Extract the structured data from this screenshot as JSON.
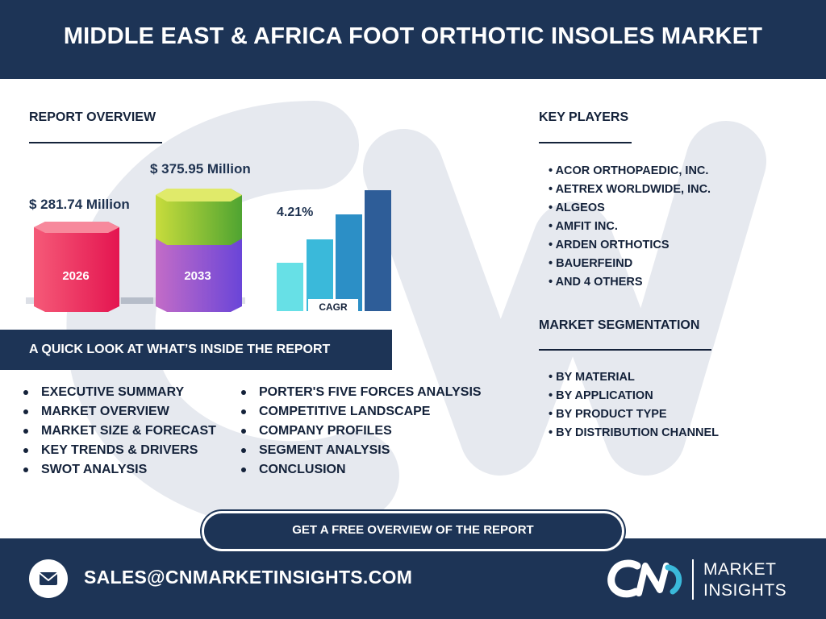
{
  "header": {
    "title": "MIDDLE EAST & AFRICA FOOT ORTHOTIC INSOLES MARKET"
  },
  "overview": {
    "title": "REPORT OVERVIEW",
    "value_2026": "$ 281.74 Million",
    "value_2033": "$ 375.95 Million",
    "year_2026": "2026",
    "year_2033": "2033",
    "cagr_value": "4.21%",
    "cagr_label": "CAGR"
  },
  "chart_data": {
    "type": "bar",
    "categories": [
      "2026",
      "2033"
    ],
    "values": [
      281.74,
      375.95
    ],
    "ylabel": "Million",
    "cagr_percent": 4.21
  },
  "key_players": {
    "title": "KEY PLAYERS",
    "items": [
      "• ACOR ORTHOPAEDIC, INC.",
      "• AETREX WORLDWIDE, INC.",
      "• ALGEOS",
      "• AMFIT INC.",
      "• ARDEN ORTHOTICS",
      "• BAUERFEIND",
      "• AND 4 OTHERS"
    ]
  },
  "segmentation": {
    "title": "MARKET SEGMENTATION",
    "items": [
      "• BY MATERIAL",
      "• BY APPLICATION",
      "• BY PRODUCT TYPE",
      "• BY DISTRIBUTION CHANNEL"
    ]
  },
  "quick_look": {
    "title": "A QUICK LOOK AT WHAT’S INSIDE THE REPORT",
    "col1": [
      "EXECUTIVE SUMMARY",
      "MARKET OVERVIEW",
      "MARKET SIZE & FORECAST",
      "KEY TRENDS & DRIVERS",
      "SWOT ANALYSIS"
    ],
    "col2": [
      "PORTER'S FIVE FORCES ANALYSIS",
      "COMPETITIVE LANDSCAPE",
      "COMPANY PROFILES",
      "SEGMENT ANALYSIS",
      "CONCLUSION"
    ]
  },
  "cta": {
    "label": "GET A FREE OVERVIEW OF THE REPORT"
  },
  "footer": {
    "email": "SALES@CNMARKETINSIGHTS.COM",
    "logo_mark": "CN",
    "logo_line1": "MARKET",
    "logo_line2": "INSIGHTS",
    "icon": "mail-icon"
  },
  "colors": {
    "navy": "#1d3456",
    "watermark": "#e6e9ef"
  }
}
